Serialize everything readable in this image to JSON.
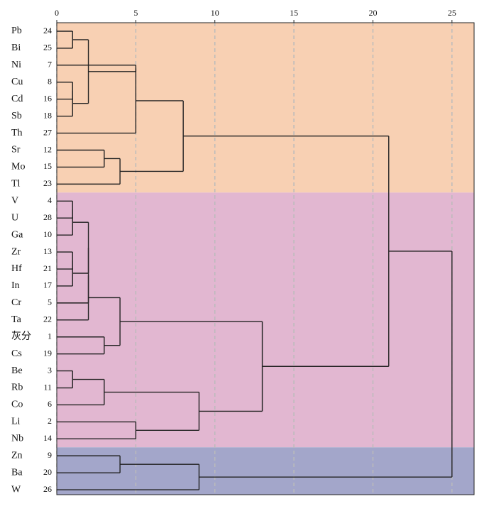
{
  "chart_data": {
    "type": "dendrogram",
    "leaves": [
      {
        "name": "Pb",
        "id": 24
      },
      {
        "name": "Bi",
        "id": 25
      },
      {
        "name": "Ni",
        "id": 7
      },
      {
        "name": "Cu",
        "id": 8
      },
      {
        "name": "Cd",
        "id": 16
      },
      {
        "name": "Sb",
        "id": 18
      },
      {
        "name": "Th",
        "id": 27
      },
      {
        "name": "Sr",
        "id": 12
      },
      {
        "name": "Mo",
        "id": 15
      },
      {
        "name": "Tl",
        "id": 23
      },
      {
        "name": "V",
        "id": 4
      },
      {
        "name": "U",
        "id": 28
      },
      {
        "name": "Ga",
        "id": 10
      },
      {
        "name": "Zr",
        "id": 13
      },
      {
        "name": "Hf",
        "id": 21
      },
      {
        "name": "In",
        "id": 17
      },
      {
        "name": "Cr",
        "id": 5
      },
      {
        "name": "Ta",
        "id": 22
      },
      {
        "name": "灰分",
        "id": 1
      },
      {
        "name": "Cs",
        "id": 19
      },
      {
        "name": "Be",
        "id": 3
      },
      {
        "name": "Rb",
        "id": 11
      },
      {
        "name": "Co",
        "id": 6
      },
      {
        "name": "Li",
        "id": 2
      },
      {
        "name": "Nb",
        "id": 14
      },
      {
        "name": "Zn",
        "id": 9
      },
      {
        "name": "Ba",
        "id": 20
      },
      {
        "name": "W",
        "id": 26
      }
    ],
    "merges": [
      {
        "children": [
          0,
          1
        ],
        "height": 1
      },
      {
        "children": [
          3,
          4
        ],
        "height": 1
      },
      {
        "children": [
          29,
          5
        ],
        "height": 1
      },
      {
        "children": [
          28,
          30
        ],
        "height": 2
      },
      {
        "children": [
          31,
          2
        ],
        "height": 5
      },
      {
        "children": [
          32,
          6
        ],
        "height": 5
      },
      {
        "children": [
          7,
          8
        ],
        "height": 3
      },
      {
        "children": [
          34,
          9
        ],
        "height": 4
      },
      {
        "children": [
          33,
          35
        ],
        "height": 8
      },
      {
        "children": [
          10,
          11
        ],
        "height": 1
      },
      {
        "children": [
          37,
          12
        ],
        "height": 1
      },
      {
        "children": [
          13,
          14
        ],
        "height": 1
      },
      {
        "children": [
          39,
          15
        ],
        "height": 1
      },
      {
        "children": [
          38,
          40
        ],
        "height": 2
      },
      {
        "children": [
          41,
          16
        ],
        "height": 2
      },
      {
        "children": [
          42,
          17
        ],
        "height": 2
      },
      {
        "children": [
          18,
          19
        ],
        "height": 3
      },
      {
        "children": [
          43,
          44
        ],
        "height": 4
      },
      {
        "children": [
          20,
          21
        ],
        "height": 1
      },
      {
        "children": [
          46,
          22
        ],
        "height": 3
      },
      {
        "children": [
          23,
          24
        ],
        "height": 5
      },
      {
        "children": [
          47,
          48
        ],
        "height": 9
      },
      {
        "children": [
          45,
          49
        ],
        "height": 13
      },
      {
        "children": [
          36,
          50
        ],
        "height": 21
      },
      {
        "children": [
          25,
          26
        ],
        "height": 4
      },
      {
        "children": [
          52,
          27
        ],
        "height": 9
      },
      {
        "children": [
          51,
          53
        ],
        "height": 25
      }
    ],
    "clusters": [
      {
        "color": "#f8d0b3",
        "leaves": [
          0,
          9
        ]
      },
      {
        "color": "#e2b7d1",
        "leaves": [
          10,
          24
        ]
      },
      {
        "color": "#a3a6ca",
        "leaves": [
          25,
          27
        ]
      }
    ],
    "xlim": [
      0,
      26.4
    ],
    "xticks": [
      0,
      5,
      10,
      15,
      20,
      25
    ],
    "grid": true,
    "line_color": "#222"
  }
}
